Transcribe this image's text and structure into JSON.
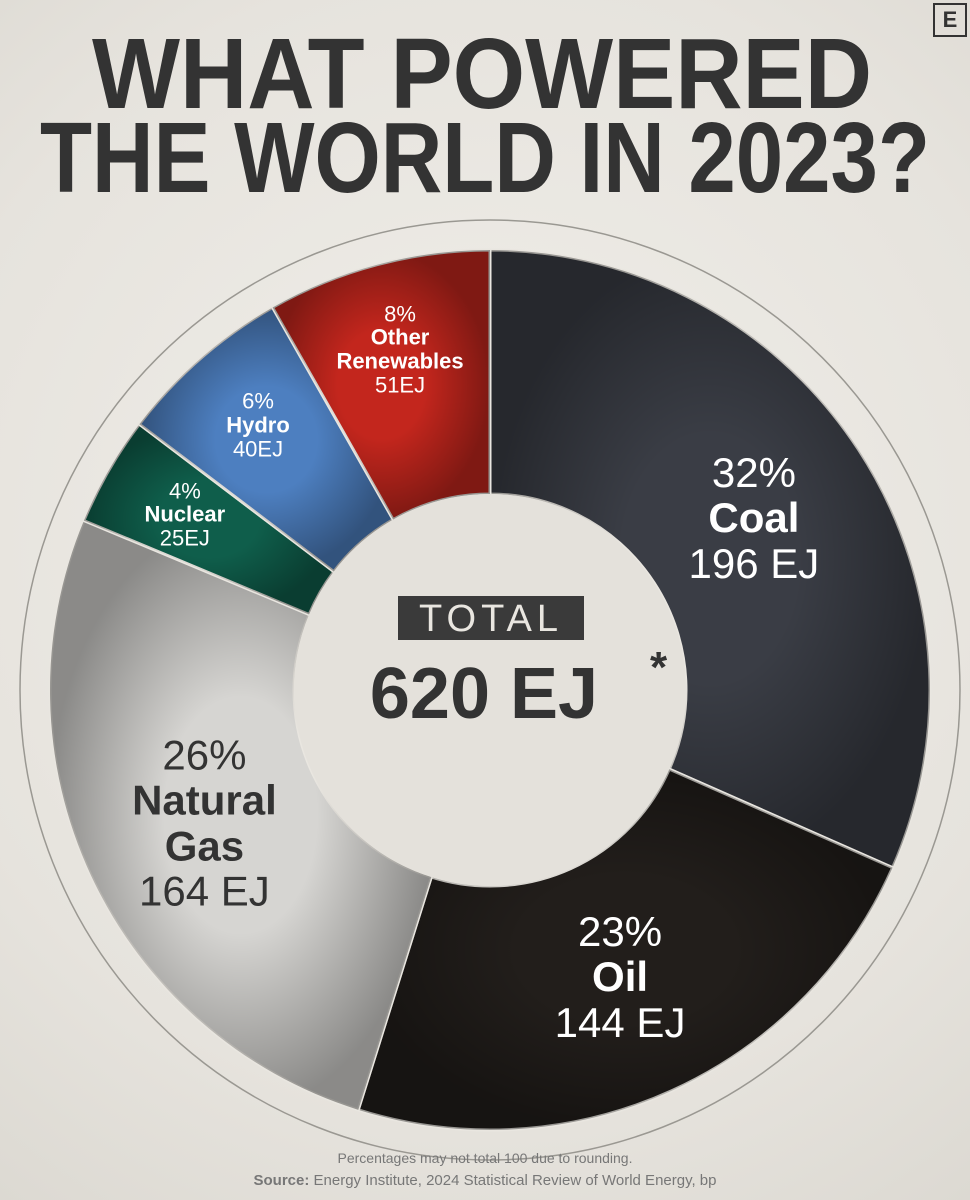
{
  "logo": "E",
  "chart_data": {
    "type": "donut",
    "title_lines": [
      "WHAT POWERED",
      "THE WORLD IN 2023?"
    ],
    "categories": [
      "Coal",
      "Oil",
      "Natural Gas",
      "Nuclear",
      "Hydro",
      "Other Renewables"
    ],
    "values": [
      196,
      144,
      164,
      25,
      40,
      51
    ],
    "value_labels": [
      "196 EJ",
      "144 EJ",
      "164 EJ",
      "25EJ",
      "40EJ",
      "51EJ"
    ],
    "shares": [
      32,
      23,
      26,
      4,
      6,
      8
    ],
    "share_labels": [
      "32%",
      "23%",
      "26%",
      "4%",
      "6%",
      "8%"
    ],
    "colors": [
      "#3a3d45",
      "#221e1b",
      "#d6d5d2",
      "#0f5e4b",
      "#4d7fc0",
      "#c3261d"
    ],
    "total": {
      "label": "TOTAL",
      "value": 620,
      "value_label": "620 EJ",
      "marker": "*"
    },
    "note": "Percentages may not total 100 due to rounding.",
    "source": {
      "label": "Source:",
      "text": "Energy Institute, 2024 Statistical Review of World Energy, bp"
    }
  }
}
